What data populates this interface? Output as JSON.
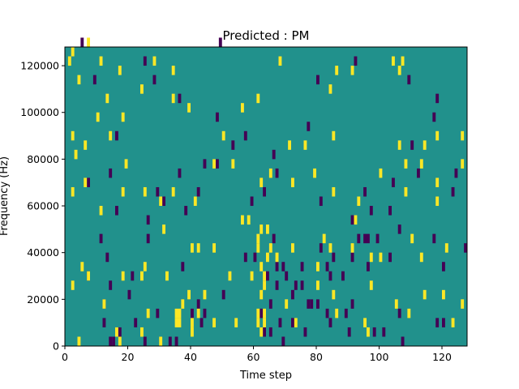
{
  "chart_data": {
    "type": "heatmap",
    "title": "Predicted : PM",
    "xlabel": "Time step",
    "ylabel": "Frequency (Hz)",
    "xlim": [
      0,
      128
    ],
    "ylim": [
      0,
      128000
    ],
    "xticks": [
      0,
      20,
      40,
      60,
      80,
      100,
      120
    ],
    "yticks": [
      0,
      20000,
      40000,
      60000,
      80000,
      100000,
      120000
    ],
    "grid": false,
    "legend": "none",
    "colors": {
      "background": "#21918c",
      "low": "#440154",
      "high": "#fde725"
    },
    "cell_height_hz": 4000,
    "yellow_cells": [
      [
        2,
        124000
      ],
      [
        7,
        128000
      ],
      [
        1,
        120000
      ],
      [
        11,
        120000
      ],
      [
        28,
        120000
      ],
      [
        68,
        120000
      ],
      [
        104,
        120000
      ],
      [
        107,
        120000
      ],
      [
        4,
        112000
      ],
      [
        17,
        116000
      ],
      [
        34,
        116000
      ],
      [
        86,
        116000
      ],
      [
        91,
        116000
      ],
      [
        106,
        116000
      ],
      [
        24,
        108000
      ],
      [
        84,
        108000
      ],
      [
        13,
        104000
      ],
      [
        34,
        104000
      ],
      [
        61,
        104000
      ],
      [
        10,
        96000
      ],
      [
        18,
        96000
      ],
      [
        39,
        100000
      ],
      [
        56,
        100000
      ],
      [
        2,
        88000
      ],
      [
        14,
        88000
      ],
      [
        50,
        88000
      ],
      [
        85,
        88000
      ],
      [
        118,
        88000
      ],
      [
        126,
        88000
      ],
      [
        6,
        84000
      ],
      [
        71,
        84000
      ],
      [
        76,
        84000
      ],
      [
        106,
        84000
      ],
      [
        114,
        84000
      ],
      [
        3,
        80000
      ],
      [
        19,
        76000
      ],
      [
        47,
        76000
      ],
      [
        53,
        76000
      ],
      [
        108,
        76000
      ],
      [
        113,
        76000
      ],
      [
        126,
        76000
      ],
      [
        100,
        72000
      ],
      [
        2,
        64000
      ],
      [
        6,
        68000
      ],
      [
        18,
        64000
      ],
      [
        25,
        64000
      ],
      [
        34,
        64000
      ],
      [
        62,
        68000
      ],
      [
        65,
        72000
      ],
      [
        72,
        68000
      ],
      [
        79,
        72000
      ],
      [
        118,
        68000
      ],
      [
        11,
        56000
      ],
      [
        30,
        60000
      ],
      [
        41,
        60000
      ],
      [
        85,
        64000
      ],
      [
        93,
        60000
      ],
      [
        108,
        64000
      ],
      [
        118,
        60000
      ],
      [
        31,
        48000
      ],
      [
        56,
        52000
      ],
      [
        58,
        52000
      ],
      [
        92,
        52000
      ],
      [
        61,
        44000
      ],
      [
        62,
        48000
      ],
      [
        64,
        48000
      ],
      [
        61,
        40000
      ],
      [
        65,
        40000
      ],
      [
        64,
        36000
      ],
      [
        67,
        36000
      ],
      [
        7,
        28000
      ],
      [
        2,
        24000
      ],
      [
        24,
        28000
      ],
      [
        32,
        28000
      ],
      [
        39,
        20000
      ],
      [
        82,
        44000
      ],
      [
        84,
        40000
      ],
      [
        100,
        36000
      ],
      [
        113,
        36000
      ],
      [
        62,
        32000
      ],
      [
        63,
        28000
      ],
      [
        63,
        24000
      ],
      [
        62,
        20000
      ],
      [
        12,
        16000
      ],
      [
        26,
        12000
      ],
      [
        44,
        20000
      ],
      [
        5,
        32000
      ],
      [
        18,
        28000
      ],
      [
        25,
        32000
      ],
      [
        52,
        28000
      ],
      [
        59,
        28000
      ],
      [
        61,
        12000
      ],
      [
        63,
        12000
      ],
      [
        61,
        8000
      ],
      [
        63,
        8000
      ],
      [
        62,
        4000
      ],
      [
        35,
        12000
      ],
      [
        36,
        12000
      ],
      [
        35,
        8000
      ],
      [
        36,
        8000
      ],
      [
        40,
        8000
      ],
      [
        42,
        12000
      ],
      [
        40,
        4000
      ],
      [
        16,
        4000
      ],
      [
        17,
        0
      ],
      [
        4,
        0
      ],
      [
        30,
        0
      ],
      [
        24,
        4000
      ],
      [
        47,
        8000
      ],
      [
        54,
        8000
      ],
      [
        73,
        8000
      ],
      [
        86,
        12000
      ],
      [
        95,
        8000
      ],
      [
        96,
        4000
      ],
      [
        109,
        12000
      ],
      [
        123,
        8000
      ],
      [
        40,
        40000
      ],
      [
        42,
        40000
      ],
      [
        47,
        40000
      ],
      [
        72,
        40000
      ],
      [
        80,
        32000
      ],
      [
        85,
        20000
      ],
      [
        91,
        40000
      ],
      [
        97,
        36000
      ],
      [
        110,
        44000
      ],
      [
        121,
        40000
      ],
      [
        37,
        16000
      ],
      [
        70,
        16000
      ],
      [
        80,
        24000
      ],
      [
        97,
        24000
      ],
      [
        105,
        16000
      ],
      [
        114,
        20000
      ],
      [
        120,
        20000
      ],
      [
        126,
        16000
      ]
    ],
    "purple_cells": [
      [
        5,
        128000
      ],
      [
        49,
        128000
      ],
      [
        25,
        120000
      ],
      [
        92,
        120000
      ],
      [
        9,
        112000
      ],
      [
        28,
        112000
      ],
      [
        109,
        112000
      ],
      [
        118,
        104000
      ],
      [
        36,
        104000
      ],
      [
        80,
        112000
      ],
      [
        48,
        96000
      ],
      [
        57,
        88000
      ],
      [
        77,
        92000
      ],
      [
        117,
        96000
      ],
      [
        16,
        88000
      ],
      [
        53,
        84000
      ],
      [
        44,
        76000
      ],
      [
        48,
        76000
      ],
      [
        66,
        80000
      ],
      [
        110,
        84000
      ],
      [
        7,
        68000
      ],
      [
        14,
        72000
      ],
      [
        29,
        64000
      ],
      [
        36,
        72000
      ],
      [
        42,
        64000
      ],
      [
        67,
        72000
      ],
      [
        104,
        68000
      ],
      [
        112,
        72000
      ],
      [
        124,
        72000
      ],
      [
        63,
        64000
      ],
      [
        31,
        60000
      ],
      [
        38,
        56000
      ],
      [
        59,
        60000
      ],
      [
        81,
        60000
      ],
      [
        95,
        64000
      ],
      [
        103,
        56000
      ],
      [
        123,
        64000
      ],
      [
        16,
        56000
      ],
      [
        26,
        52000
      ],
      [
        91,
        52000
      ],
      [
        97,
        56000
      ],
      [
        26,
        44000
      ],
      [
        66,
        44000
      ],
      [
        93,
        44000
      ],
      [
        95,
        44000
      ],
      [
        99,
        44000
      ],
      [
        106,
        48000
      ],
      [
        96,
        44000
      ],
      [
        117,
        44000
      ],
      [
        11,
        44000
      ],
      [
        13,
        36000
      ],
      [
        21,
        28000
      ],
      [
        37,
        32000
      ],
      [
        60,
        36000
      ],
      [
        64,
        28000
      ],
      [
        67,
        32000
      ],
      [
        69,
        32000
      ],
      [
        75,
        32000
      ],
      [
        85,
        36000
      ],
      [
        91,
        36000
      ],
      [
        103,
        36000
      ],
      [
        120,
        32000
      ],
      [
        127,
        40000
      ],
      [
        7,
        28000
      ],
      [
        57,
        36000
      ],
      [
        70,
        28000
      ],
      [
        81,
        40000
      ],
      [
        83,
        32000
      ],
      [
        84,
        28000
      ],
      [
        14,
        24000
      ],
      [
        20,
        20000
      ],
      [
        50,
        20000
      ],
      [
        67,
        24000
      ],
      [
        72,
        20000
      ],
      [
        73,
        24000
      ],
      [
        75,
        24000
      ],
      [
        88,
        28000
      ],
      [
        96,
        32000
      ],
      [
        12,
        16000
      ],
      [
        29,
        12000
      ],
      [
        42,
        16000
      ],
      [
        65,
        16000
      ],
      [
        77,
        16000
      ],
      [
        78,
        16000
      ],
      [
        80,
        16000
      ],
      [
        89,
        12000
      ],
      [
        12,
        8000
      ],
      [
        22,
        8000
      ],
      [
        40,
        12000
      ],
      [
        44,
        12000
      ],
      [
        62,
        12000
      ],
      [
        68,
        8000
      ],
      [
        72,
        8000
      ],
      [
        83,
        12000
      ],
      [
        91,
        16000
      ],
      [
        106,
        12000
      ],
      [
        118,
        8000
      ],
      [
        120,
        8000
      ],
      [
        16,
        4000
      ],
      [
        17,
        4000
      ],
      [
        15,
        0
      ],
      [
        14,
        0
      ],
      [
        25,
        0
      ],
      [
        43,
        8000
      ],
      [
        69,
        0
      ],
      [
        84,
        8000
      ],
      [
        90,
        4000
      ],
      [
        33,
        0
      ],
      [
        35,
        0
      ],
      [
        101,
        4000
      ],
      [
        107,
        0
      ],
      [
        98,
        4000
      ],
      [
        63,
        4000
      ],
      [
        65,
        4000
      ],
      [
        76,
        4000
      ]
    ]
  }
}
